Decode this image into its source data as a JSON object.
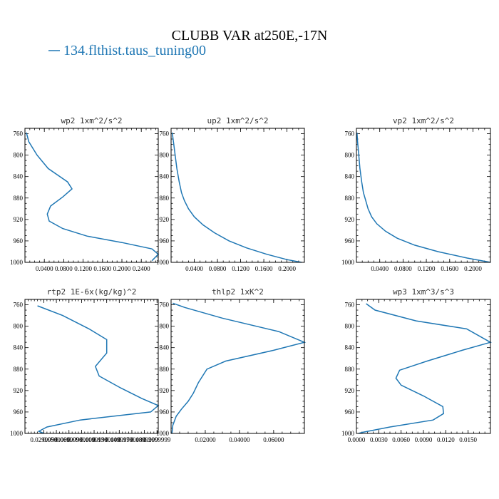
{
  "title": "CLUBB VAR at250E,-17N",
  "legend": {
    "label": "134.flthist.taus_tuning00",
    "color": "#1f77b4"
  },
  "chart_data": [
    {
      "type": "line",
      "title": "wp2   1xm^2/s^2",
      "xlim": [
        0.0,
        0.275
      ],
      "ylim": [
        1000,
        750
      ],
      "xticks": [
        0.04,
        0.08,
        0.12,
        0.16,
        0.2,
        0.24
      ],
      "xtick_labels": [
        "0.0400",
        "0.0800",
        "0.1200",
        "0.1600",
        "0.2000",
        "0.2400"
      ],
      "yticks": [
        760,
        800,
        840,
        880,
        920,
        960,
        1000
      ],
      "series": [
        {
          "color": "#1f77b4",
          "x": [
            0.003,
            0.008,
            0.025,
            0.048,
            0.088,
            0.097,
            0.078,
            0.053,
            0.046,
            0.05,
            0.078,
            0.128,
            0.2,
            0.262,
            0.275,
            0.262
          ],
          "y": [
            758,
            775,
            800,
            825,
            850,
            863,
            878,
            895,
            910,
            923,
            937,
            951,
            963,
            975,
            985,
            997
          ]
        }
      ]
    },
    {
      "type": "line",
      "title": "up2   1xm^2/s^2",
      "xlim": [
        0.0,
        0.23
      ],
      "ylim": [
        1000,
        750
      ],
      "xticks": [
        0.04,
        0.08,
        0.12,
        0.16,
        0.2
      ],
      "xtick_labels": [
        "0.0400",
        "0.0800",
        "0.1200",
        "0.1600",
        "0.2000"
      ],
      "yticks": [
        760,
        800,
        840,
        880,
        920,
        960,
        1000
      ],
      "series": [
        {
          "color": "#1f77b4",
          "x": [
            0.002,
            0.004,
            0.007,
            0.01,
            0.014,
            0.018,
            0.023,
            0.03,
            0.04,
            0.055,
            0.075,
            0.1,
            0.13,
            0.165,
            0.2,
            0.225
          ],
          "y": [
            758,
            775,
            800,
            825,
            850,
            870,
            885,
            900,
            915,
            930,
            945,
            960,
            973,
            985,
            995,
            1000
          ]
        }
      ]
    },
    {
      "type": "line",
      "title": "vp2   1xm^2/s^2",
      "xlim": [
        0.0,
        0.23
      ],
      "ylim": [
        1000,
        750
      ],
      "xticks": [
        0.04,
        0.08,
        0.12,
        0.16,
        0.2
      ],
      "xtick_labels": [
        "0.0400",
        "0.0800",
        "0.1200",
        "0.1600",
        "0.2000"
      ],
      "yticks": [
        760,
        800,
        840,
        880,
        920,
        960,
        1000
      ],
      "series": [
        {
          "color": "#1f77b4",
          "x": [
            0.001,
            0.002,
            0.004,
            0.006,
            0.009,
            0.012,
            0.016,
            0.02,
            0.026,
            0.035,
            0.05,
            0.07,
            0.1,
            0.14,
            0.19,
            0.23
          ],
          "y": [
            758,
            775,
            800,
            825,
            850,
            870,
            885,
            900,
            915,
            928,
            942,
            955,
            968,
            980,
            992,
            1000
          ]
        }
      ]
    },
    {
      "type": "line",
      "title": "rtp2   1E-6x(kg/kg)^2",
      "xlim": [
        0.0,
        0.212
      ],
      "ylim": [
        1000,
        750
      ],
      "xticks": [
        0.03,
        0.05,
        0.07,
        0.09,
        0.11,
        0.13,
        0.15,
        0.17,
        0.19,
        0.21
      ],
      "xtick_labels": [
        "0.0299999",
        "0.0500000",
        "0.0699999",
        "0.0900000",
        "0.1099999",
        "0.1300000",
        "0.1499999",
        "0.1700000",
        "0.1899999",
        "0.2099999"
      ],
      "yticks": [
        760,
        800,
        840,
        880,
        920,
        960,
        1000
      ],
      "series": [
        {
          "color": "#1f77b4",
          "x": [
            0.02,
            0.06,
            0.102,
            0.13,
            0.13,
            0.112,
            0.118,
            0.152,
            0.186,
            0.212,
            0.2,
            0.088,
            0.035,
            0.022,
            0.03
          ],
          "y": [
            762,
            780,
            805,
            825,
            850,
            875,
            893,
            915,
            935,
            948,
            960,
            975,
            988,
            996,
            1000
          ]
        }
      ]
    },
    {
      "type": "line",
      "title": "thlp2   1xK^2",
      "xlim": [
        0.0,
        0.078
      ],
      "ylim": [
        1000,
        750
      ],
      "xticks": [
        0.02,
        0.04,
        0.06
      ],
      "xtick_labels": [
        "0.02000",
        "0.04000",
        "0.06000"
      ],
      "yticks": [
        760,
        800,
        840,
        880,
        920,
        960,
        1000
      ],
      "series": [
        {
          "color": "#1f77b4",
          "x": [
            0.001,
            0.008,
            0.03,
            0.063,
            0.078,
            0.06,
            0.032,
            0.021,
            0.016,
            0.013,
            0.01,
            0.006,
            0.003,
            0.001,
            0.0005
          ],
          "y": [
            757,
            765,
            785,
            810,
            830,
            845,
            865,
            880,
            905,
            925,
            940,
            955,
            968,
            985,
            1000
          ]
        }
      ]
    },
    {
      "type": "line",
      "title": "wp3   1xm^3/s^3",
      "xlim": [
        0.0,
        0.018
      ],
      "ylim": [
        1000,
        750
      ],
      "xticks": [
        0.0,
        0.003,
        0.006,
        0.009,
        0.012,
        0.015
      ],
      "xtick_labels": [
        "0.0000",
        "0.0030",
        "0.0060",
        "0.0090",
        "0.0120",
        "0.0150"
      ],
      "yticks": [
        760,
        800,
        840,
        880,
        920,
        960,
        1000
      ],
      "series": [
        {
          "color": "#1f77b4",
          "x": [
            0.0013,
            0.0025,
            0.008,
            0.0148,
            0.018,
            0.0142,
            0.0095,
            0.0058,
            0.0053,
            0.006,
            0.009,
            0.0116,
            0.0117,
            0.0103,
            0.0045,
            0.0008,
            0.0003
          ],
          "y": [
            758,
            770,
            790,
            805,
            830,
            845,
            865,
            882,
            897,
            910,
            930,
            950,
            963,
            975,
            988,
            998,
            1000
          ]
        }
      ]
    }
  ]
}
